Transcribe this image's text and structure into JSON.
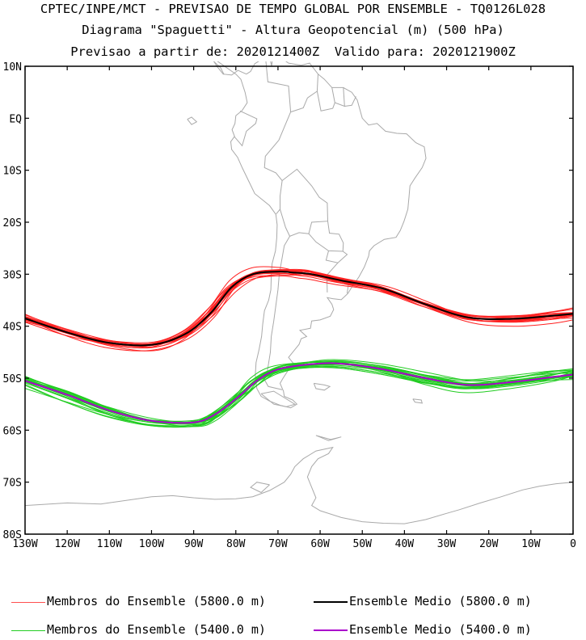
{
  "header": {
    "line1": "CPTEC/INPE/MCT - PREVISAO DE TEMPO GLOBAL POR ENSEMBLE - TQ0126L028",
    "line2": "Diagrama \"Spaguetti\" - Altura Geopotencial (m) (500 hPa)",
    "line3": "Previsao a partir de: 2020121400Z  Valido para: 2020121900Z"
  },
  "map": {
    "lon_range": [
      -130,
      0
    ],
    "lat_range": [
      -80,
      10
    ],
    "lat_labels": [
      "10N",
      "EQ",
      "10S",
      "20S",
      "30S",
      "40S",
      "50S",
      "60S",
      "70S",
      "80S"
    ],
    "lat_values": [
      10,
      0,
      -10,
      -20,
      -30,
      -40,
      -50,
      -60,
      -70,
      -80
    ],
    "lon_labels": [
      "130W",
      "120W",
      "110W",
      "100W",
      "90W",
      "80W",
      "70W",
      "60W",
      "50W",
      "40W",
      "30W",
      "20W",
      "10W",
      "0"
    ],
    "lon_values": [
      -130,
      -120,
      -110,
      -100,
      -90,
      -80,
      -70,
      -60,
      -50,
      -40,
      -30,
      -20,
      -10,
      0
    ],
    "coast_color": "#a9a9a9"
  },
  "contours": {
    "z5800": {
      "member_color": "#ff2020",
      "mean_color": "#000000",
      "mean": [
        [
          -130,
          -38.5
        ],
        [
          -120,
          -41.2
        ],
        [
          -110,
          -43.2
        ],
        [
          -100,
          -43.6
        ],
        [
          -92,
          -41.5
        ],
        [
          -86,
          -37.5
        ],
        [
          -81,
          -32.5
        ],
        [
          -76,
          -30.0
        ],
        [
          -70,
          -29.5
        ],
        [
          -66,
          -29.7
        ],
        [
          -62,
          -30.0
        ],
        [
          -55,
          -31.2
        ],
        [
          -45,
          -32.8
        ],
        [
          -35,
          -35.8
        ],
        [
          -25,
          -38.3
        ],
        [
          -15,
          -38.6
        ],
        [
          -5,
          -38.0
        ],
        [
          0,
          -37.6
        ]
      ]
    },
    "z5400": {
      "member_color": "#22cc22",
      "mean_color": "#aa00cc",
      "mean": [
        [
          -130,
          -50.5
        ],
        [
          -120,
          -53.2
        ],
        [
          -110,
          -56.2
        ],
        [
          -100,
          -58.2
        ],
        [
          -90,
          -58.5
        ],
        [
          -85,
          -57.0
        ],
        [
          -80,
          -54.0
        ],
        [
          -75,
          -50.5
        ],
        [
          -70,
          -48.3
        ],
        [
          -62,
          -47.3
        ],
        [
          -55,
          -47.2
        ],
        [
          -45,
          -48.3
        ],
        [
          -35,
          -50.0
        ],
        [
          -25,
          -51.3
        ],
        [
          -15,
          -50.8
        ],
        [
          -5,
          -49.8
        ],
        [
          0,
          -49.3
        ]
      ]
    }
  },
  "legend": {
    "members_5800": "Membros do Ensemble (5800.0 m)",
    "mean_5800": "Ensemble Medio (5800.0 m)",
    "members_5400": "Membros do Ensemble (5400.0 m)",
    "mean_5400": "Ensemble Medio (5400.0 m)"
  }
}
